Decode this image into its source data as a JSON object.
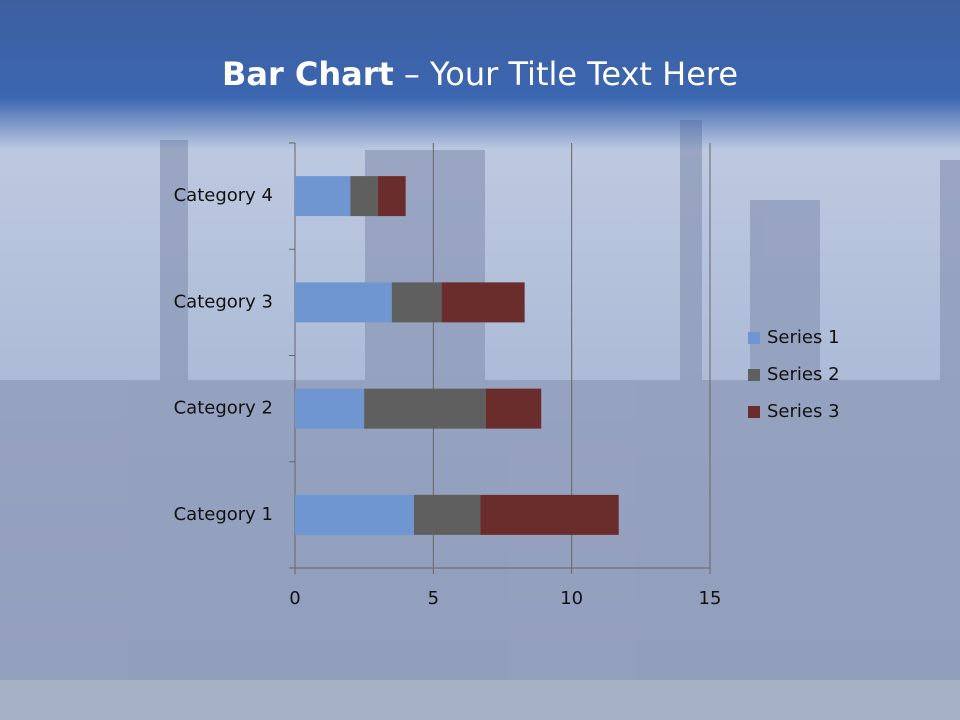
{
  "chart_data": {
    "type": "stacked-bar-horizontal",
    "title": [
      "Bar Chart",
      "– Your Title Text Here"
    ],
    "categories": [
      "Category 1",
      "Category 2",
      "Category 3",
      "Category 4"
    ],
    "series": [
      {
        "name": "Series 1",
        "color": "#6f96d0",
        "values": [
          4.3,
          2.5,
          3.5,
          2
        ]
      },
      {
        "name": "Series 2",
        "color": "#5f5f5f",
        "values": [
          2.4,
          4.4,
          1.8,
          1
        ]
      },
      {
        "name": "Series 3",
        "color": "#6b2c2c",
        "values": [
          5,
          2,
          3,
          1
        ]
      }
    ],
    "xlim": [
      0,
      15
    ],
    "xticks": [
      0,
      5,
      10,
      15
    ],
    "grid": true,
    "legend": "right"
  }
}
